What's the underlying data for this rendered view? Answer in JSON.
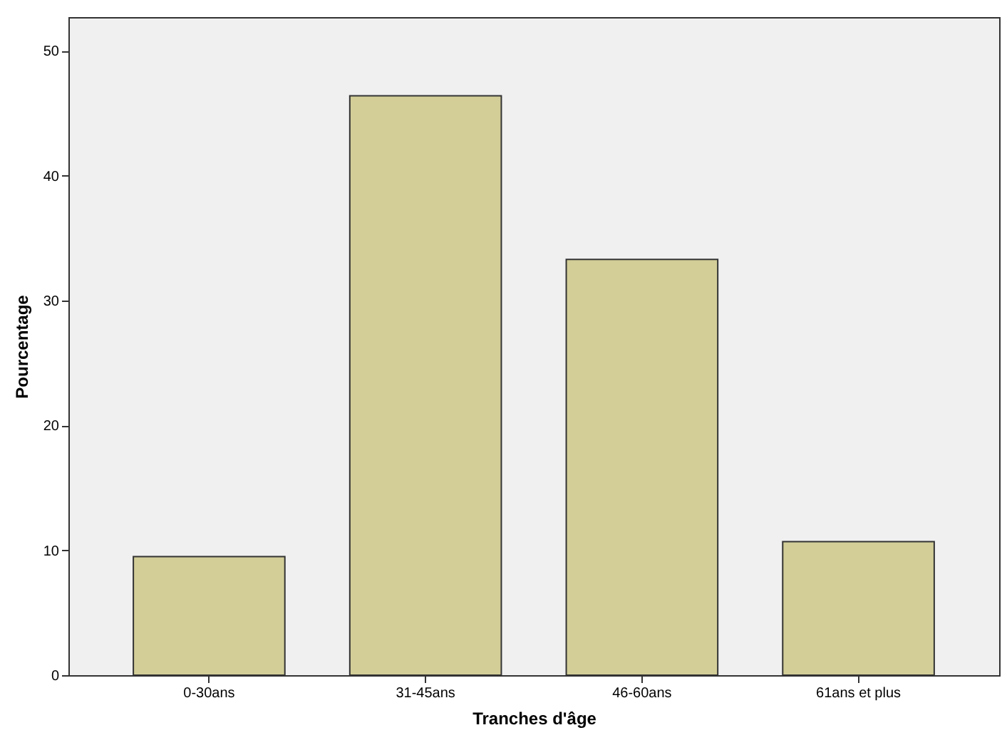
{
  "chart_data": {
    "type": "bar",
    "xlabel": "Tranches d'âge",
    "ylabel": "Pourcentage",
    "categories": [
      "0-30ans",
      "31-45ans",
      "46-60ans",
      "61ans et plus"
    ],
    "values": [
      9.5,
      46.4,
      33.3,
      10.7
    ],
    "color": "#d3ce98",
    "ylim": [
      0,
      52.7
    ],
    "yticks": [
      0,
      10,
      20,
      30,
      40,
      50
    ],
    "grid": false
  }
}
